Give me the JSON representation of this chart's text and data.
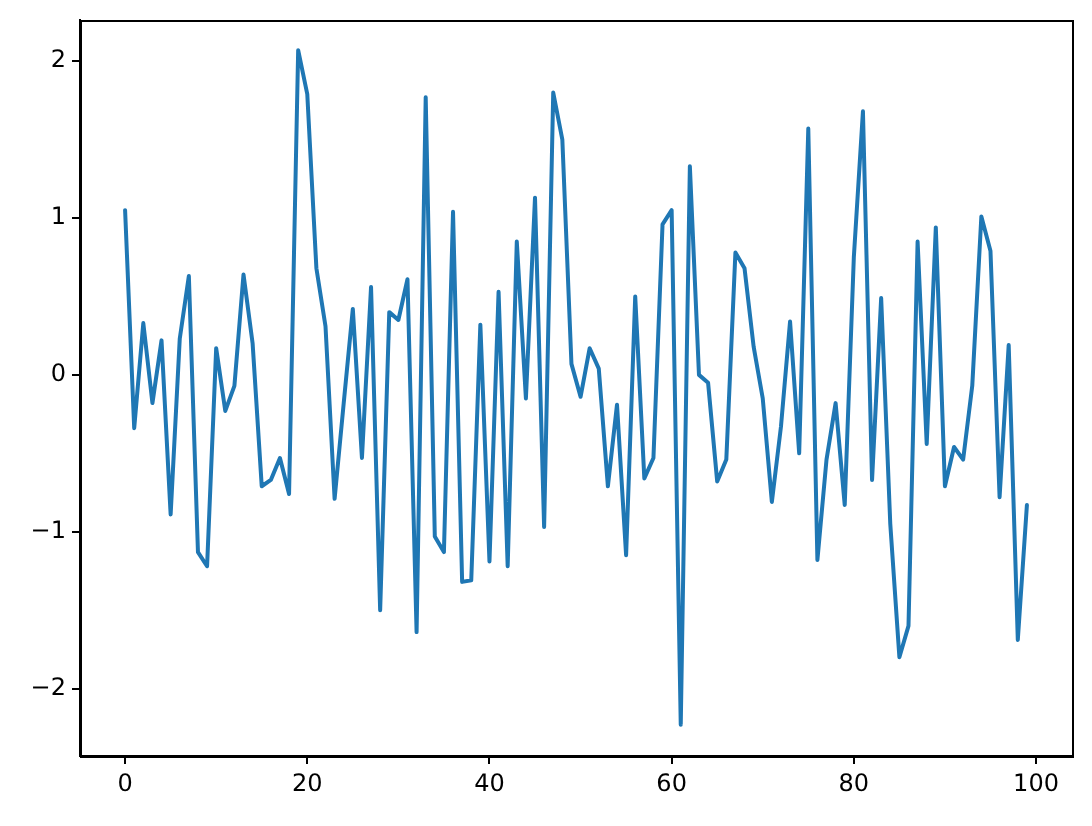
{
  "chart_data": {
    "type": "line",
    "x": [
      0,
      1,
      2,
      3,
      4,
      5,
      6,
      7,
      8,
      9,
      10,
      11,
      12,
      13,
      14,
      15,
      16,
      17,
      18,
      19,
      20,
      21,
      22,
      23,
      24,
      25,
      26,
      27,
      28,
      29,
      30,
      31,
      32,
      33,
      34,
      35,
      36,
      37,
      38,
      39,
      40,
      41,
      42,
      43,
      44,
      45,
      46,
      47,
      48,
      49,
      50,
      51,
      52,
      53,
      54,
      55,
      56,
      57,
      58,
      59,
      60,
      61,
      62,
      63,
      64,
      65,
      66,
      67,
      68,
      69,
      70,
      71,
      72,
      73,
      74,
      75,
      76,
      77,
      78,
      79,
      80,
      81,
      82,
      83,
      84,
      85,
      86,
      87,
      88,
      89,
      90,
      91,
      92,
      93,
      94,
      95,
      96,
      97,
      98,
      99
    ],
    "series": [
      {
        "color": "#1f77b4",
        "values": [
          1.05,
          -0.34,
          0.33,
          -0.18,
          0.22,
          -0.89,
          0.23,
          0.63,
          -1.13,
          -1.22,
          0.17,
          -0.23,
          -0.07,
          0.64,
          0.2,
          -0.71,
          -0.67,
          -0.53,
          -0.76,
          2.07,
          1.79,
          0.68,
          0.31,
          -0.79,
          -0.18,
          0.42,
          -0.53,
          0.56,
          -1.5,
          0.4,
          0.35,
          0.61,
          -1.64,
          1.77,
          -1.03,
          -1.13,
          1.04,
          -1.32,
          -1.31,
          0.32,
          -1.19,
          0.53,
          -1.22,
          0.85,
          -0.15,
          1.13,
          -0.97,
          1.8,
          1.5,
          0.07,
          -0.14,
          0.17,
          0.04,
          -0.71,
          -0.19,
          -1.15,
          0.5,
          -0.66,
          -0.53,
          0.96,
          1.05,
          -2.23,
          1.33,
          0.0,
          -0.05,
          -0.68,
          -0.54,
          0.78,
          0.68,
          0.18,
          -0.15,
          -0.81,
          -0.33,
          0.34,
          -0.5,
          1.57,
          -1.18,
          -0.54,
          -0.18,
          -0.83,
          0.75,
          1.68,
          -0.67,
          0.49,
          -0.95,
          -1.8,
          -1.6,
          0.85,
          -0.44,
          0.94,
          -0.71,
          -0.46,
          -0.54,
          -0.07,
          1.01,
          0.79,
          -0.78,
          0.19,
          -1.69,
          -0.83
        ]
      }
    ],
    "xlim": [
      -4.95,
      103.95
    ],
    "ylim": [
      -2.43,
      2.26
    ],
    "xticks": [
      0,
      20,
      40,
      60,
      80,
      100
    ],
    "yticks": [
      {
        "value": -2,
        "label": "−2"
      },
      {
        "value": -1,
        "label": "−1"
      },
      0,
      1,
      2
    ]
  }
}
